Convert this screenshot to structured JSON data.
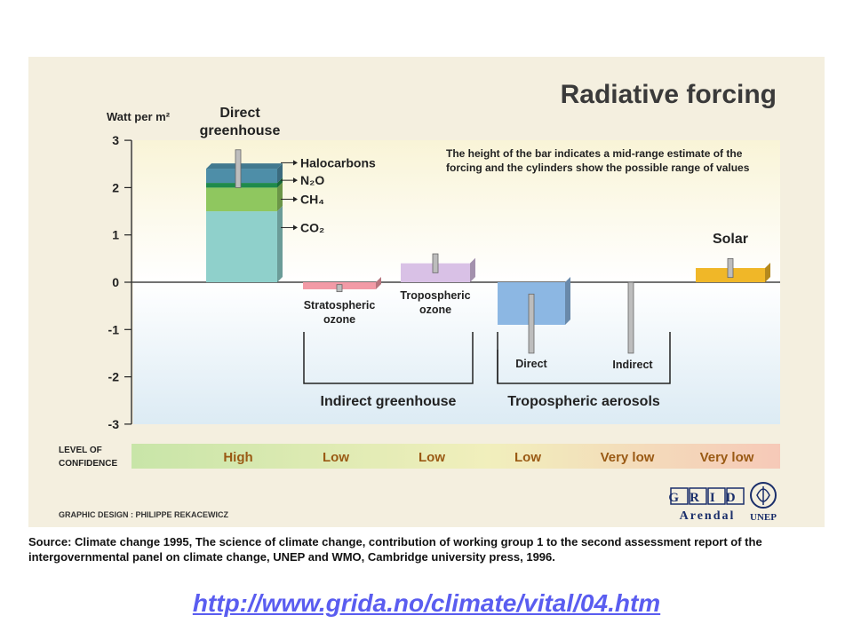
{
  "chart_data": {
    "type": "bar",
    "title": "Radiative forcing",
    "ylabel": "Watt per m²",
    "ylim": [
      -3,
      3
    ],
    "yticks": [
      "3",
      "2",
      "1",
      "0",
      "-1",
      "-2",
      "-3"
    ],
    "note_lines": [
      "The height of the bar indicates a mid-range estimate of the",
      "forcing and the cylinders show the possible range of values"
    ],
    "bars": [
      {
        "label_lines": [
          "Direct",
          "greenhouse"
        ],
        "stacked": [
          {
            "name": "CO₂",
            "value": 1.5,
            "color": "#8fd0cb"
          },
          {
            "name": "CH₄",
            "value": 0.5,
            "color": "#8fc75f"
          },
          {
            "name": "N₂O",
            "value": 0.1,
            "color": "#1f8a4c"
          },
          {
            "name": "Halocarbons",
            "value": 0.3,
            "color": "#4e8ea8"
          }
        ],
        "range": [
          2.0,
          2.8
        ]
      },
      {
        "label_lines": [
          "Stratospheric",
          "ozone"
        ],
        "value": -0.15,
        "range": [
          -0.2,
          -0.05
        ],
        "color": "#f29aa6"
      },
      {
        "label_lines": [
          "Tropospheric",
          "ozone"
        ],
        "value": 0.4,
        "range": [
          0.2,
          0.6
        ],
        "color": "#d9c1e6"
      },
      {
        "label_lines": [
          "Direct"
        ],
        "value": -0.9,
        "range": [
          -1.5,
          -0.25
        ],
        "color": "#8cb7e3"
      },
      {
        "label_lines": [
          "Indirect"
        ],
        "value": 0.0,
        "range": [
          -1.5,
          0.0
        ],
        "color": "#cccccc"
      },
      {
        "label_lines": [
          "Solar"
        ],
        "value": 0.3,
        "range": [
          0.1,
          0.5
        ],
        "color": "#f0b728"
      }
    ],
    "groups": [
      "Indirect greenhouse",
      "Tropospheric aerosols"
    ],
    "confidence_label_lines": [
      "LEVEL OF",
      "CONFIDENCE"
    ],
    "confidence": [
      "High",
      "Low",
      "Low",
      "Low",
      "Very low",
      "Very low"
    ],
    "colors": {
      "panel_bg": "#f4efdf",
      "upper_gradient_top": "#f9f4d7",
      "lower_gradient_bottom": "#dcebf4",
      "confidence_left": "#c8e5a8",
      "confidence_right": "#f6c9b8",
      "confidence_text": "#9a5a14"
    }
  },
  "footer": {
    "credit": "GRAPHIC DESIGN : PHILIPPE REKACEWICZ",
    "logo_grid": "GRID",
    "logo_arendal": "Arendal",
    "logo_unep": "UNEP",
    "source": "Source: Climate change 1995, The science of climate change, contribution of working group 1 to the second assessment report of the intergovernmental panel on climate change, UNEP and WMO, Cambridge university press,  1996.",
    "url": "http://www.grida.no/climate/vital/04.htm"
  }
}
